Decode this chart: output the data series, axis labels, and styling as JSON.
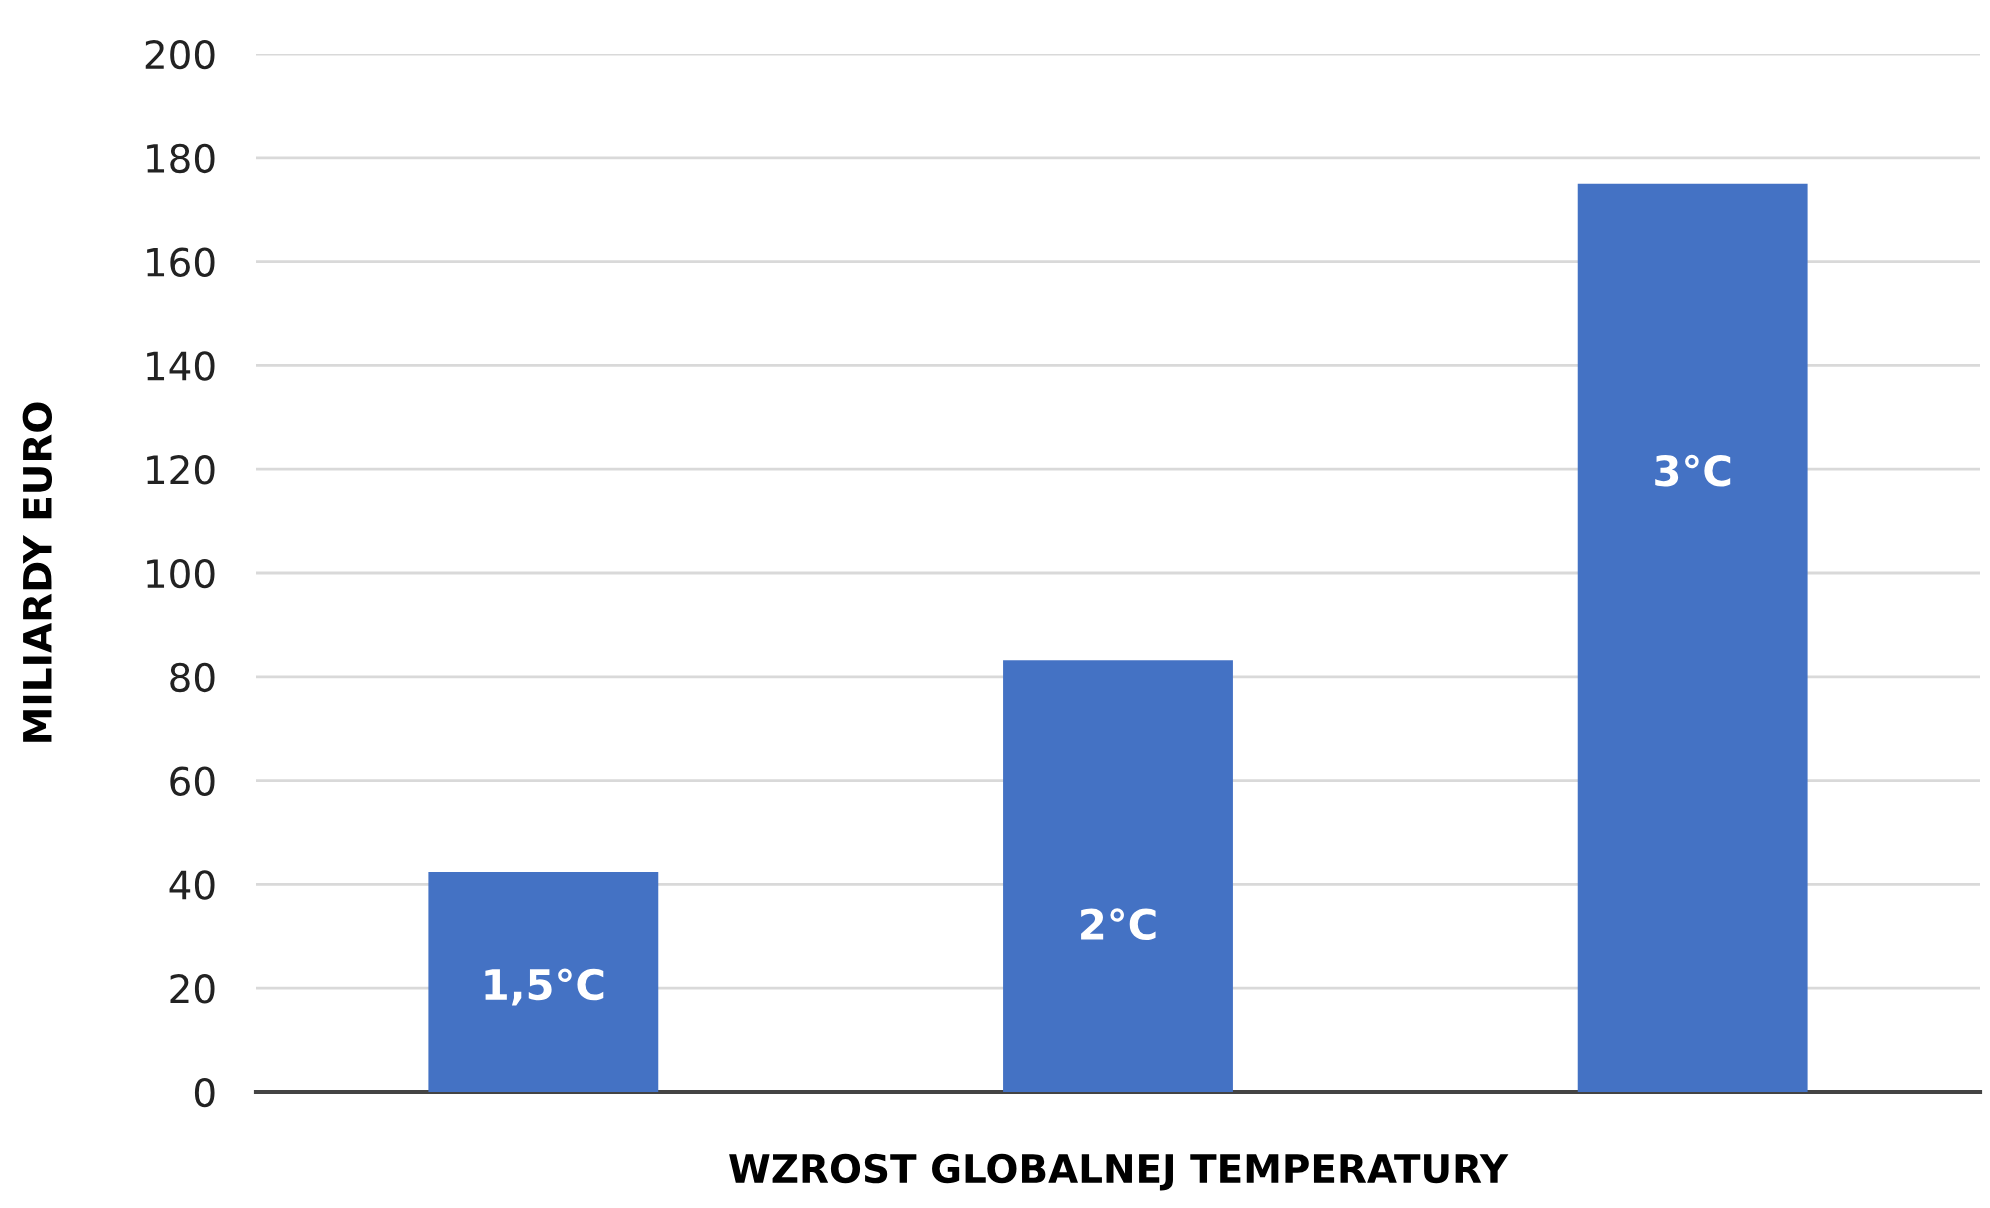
{
  "chart_data": {
    "type": "bar",
    "xlabel": "WZROST GLOBALNEJ TEMPERATURY",
    "ylabel": "MILIARDY EURO",
    "categories": [
      "1,5°C",
      "2°C",
      "3°C"
    ],
    "values": [
      42.4,
      83.2,
      175
    ],
    "color": "#4472c4",
    "ylim": [
      0,
      200
    ],
    "yticks": [
      0,
      20,
      40,
      60,
      80,
      100,
      120,
      140,
      160,
      180,
      200
    ],
    "grid": "y",
    "tick_labels": "y"
  }
}
